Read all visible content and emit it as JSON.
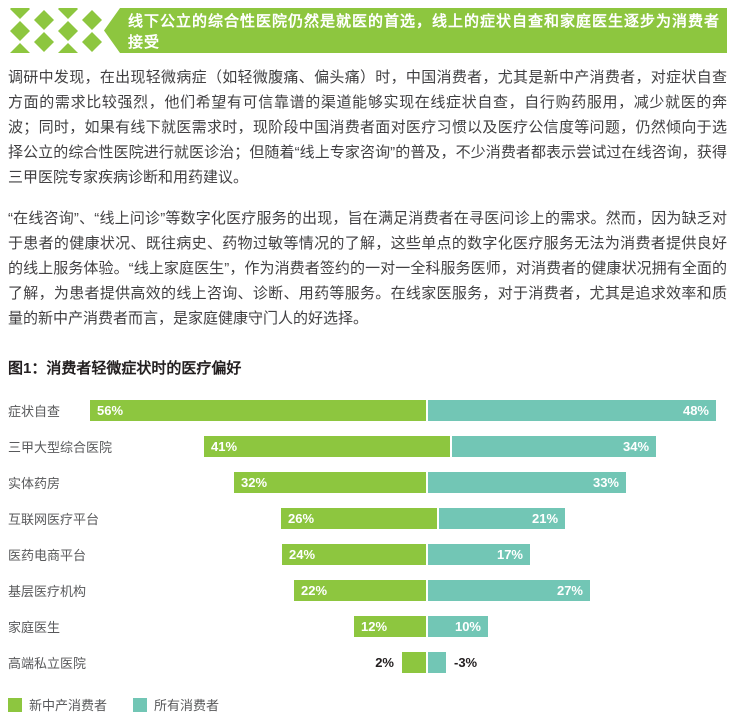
{
  "header": {
    "banner_text": "线下公立的综合性医院仍然是就医的首选，线上的症状自查和家庭医生逐步为消费者接受",
    "banner_color": "#8dc63f"
  },
  "paragraphs": [
    "调研中发现，在出现轻微病症（如轻微腹痛、偏头痛）时，中国消费者，尤其是新中产消费者，对症状自查方面的需求比较强烈，他们希望有可信靠谱的渠道能够实现在线症状自查，自行购药服用，减少就医的奔波；同时，如果有线下就医需求时，现阶段中国消费者面对医疗习惯以及医疗公信度等问题，仍然倾向于选择公立的综合性医院进行就医诊治；但随着“线上专家咨询”的普及，不少消费者都表示尝试过在线咨询，获得三甲医院专家疾病诊断和用药建议。",
    "“在线咨询”、“线上问诊”等数字化医疗服务的出现，旨在满足消费者在寻医问诊上的需求。然而，因为缺乏对于患者的健康状况、既往病史、药物过敏等情况的了解，这些单点的数字化医疗服务无法为消费者提供良好的线上服务体验。“线上家庭医生”，作为消费者签约的一对一全科服务医师，对消费者的健康状况拥有全面的了解，为患者提供高效的线上咨询、诊断、用药等服务。在线家医服务，对于消费者，尤其是追求效率和质量的新中产消费者而言，是家庭健康守门人的好选择。"
  ],
  "chart": {
    "title": "图1：消费者轻微症状时的医疗偏好"
  },
  "chart_data": {
    "type": "bar",
    "orientation": "horizontal-diverging",
    "title": "图1：消费者轻微症状时的医疗偏好",
    "categories": [
      "症状自查",
      "三甲大型综合医院",
      "实体药房",
      "互联网医疗平台",
      "医药电商平台",
      "基层医疗机构",
      "家庭医生",
      "高端私立医院"
    ],
    "series": [
      {
        "name": "新中产消费者",
        "color": "#8dc63f",
        "values": [
          56,
          41,
          32,
          26,
          24,
          22,
          12,
          2
        ]
      },
      {
        "name": "所有消费者",
        "color": "#72c6b5",
        "values": [
          48,
          34,
          33,
          21,
          17,
          27,
          10,
          -3
        ]
      }
    ],
    "value_suffix": "%",
    "legend_position": "bottom",
    "grid": false
  }
}
